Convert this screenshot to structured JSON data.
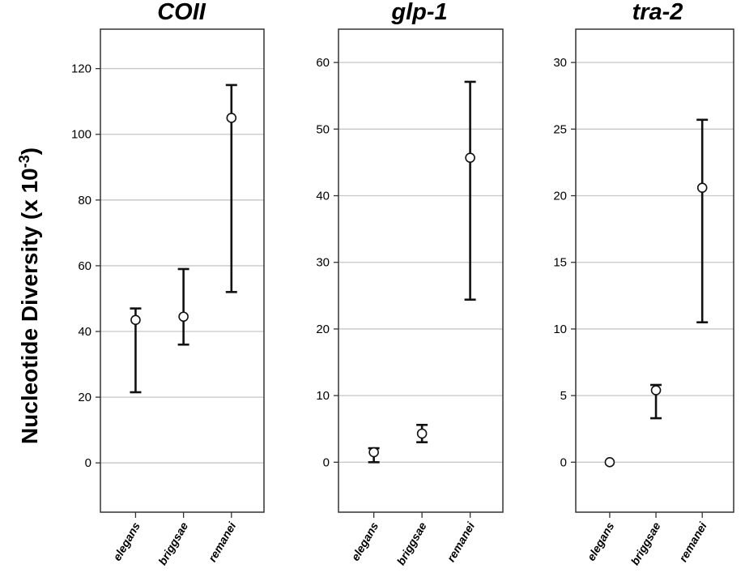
{
  "figure": {
    "ylabel_main": "Nucleotide Diversity  (x 10",
    "ylabel_exp": "-3",
    "ylabel_close": ")"
  },
  "chart_data": [
    {
      "type": "error-bar",
      "title": "COII",
      "xlabel": "",
      "ylabel": "Nucleotide Diversity (x 10^-3)",
      "ylim": [
        -15,
        132
      ],
      "yticks": [
        0,
        20,
        40,
        60,
        80,
        100,
        120
      ],
      "grid": true,
      "categories": [
        "elegans",
        "briggsae",
        "remanei"
      ],
      "means": [
        43.5,
        44.5,
        105
      ],
      "lower": [
        21.5,
        36,
        52
      ],
      "upper": [
        47,
        59,
        115
      ]
    },
    {
      "type": "error-bar",
      "title": "glp-1",
      "xlabel": "",
      "ylabel": "",
      "ylim": [
        -7.5,
        65
      ],
      "yticks": [
        0,
        10,
        20,
        30,
        40,
        50,
        60
      ],
      "grid": true,
      "categories": [
        "elegans",
        "briggsae",
        "remanei"
      ],
      "means": [
        1.5,
        4.3,
        45.7
      ],
      "lower": [
        0,
        3,
        24.4
      ],
      "upper": [
        2.1,
        5.6,
        57.1
      ]
    },
    {
      "type": "error-bar",
      "title": "tra-2",
      "xlabel": "",
      "ylabel": "",
      "ylim": [
        -3.75,
        32.5
      ],
      "yticks": [
        0,
        5,
        10,
        15,
        20,
        25,
        30
      ],
      "grid": true,
      "categories": [
        "elegans",
        "briggsae",
        "remanei"
      ],
      "means": [
        0,
        5.4,
        20.6
      ],
      "lower": [
        0,
        3.3,
        10.5
      ],
      "upper": [
        0,
        5.8,
        25.7
      ]
    }
  ]
}
